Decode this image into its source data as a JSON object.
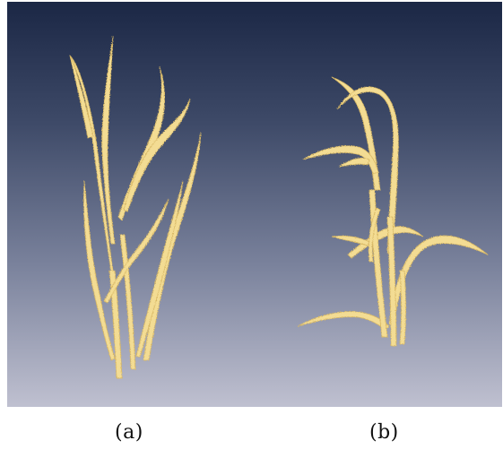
{
  "figure": {
    "caption_a": "(a)",
    "caption_b": "(b)",
    "background_gradient": [
      "#1b2745",
      "#3e4a68",
      "#7a829c",
      "#bfc0d0"
    ],
    "plant_color": "#f3dc93",
    "plant_shadow": "#d8b865",
    "subjects": [
      "plant-a-upright",
      "plant-b-drooping"
    ]
  }
}
